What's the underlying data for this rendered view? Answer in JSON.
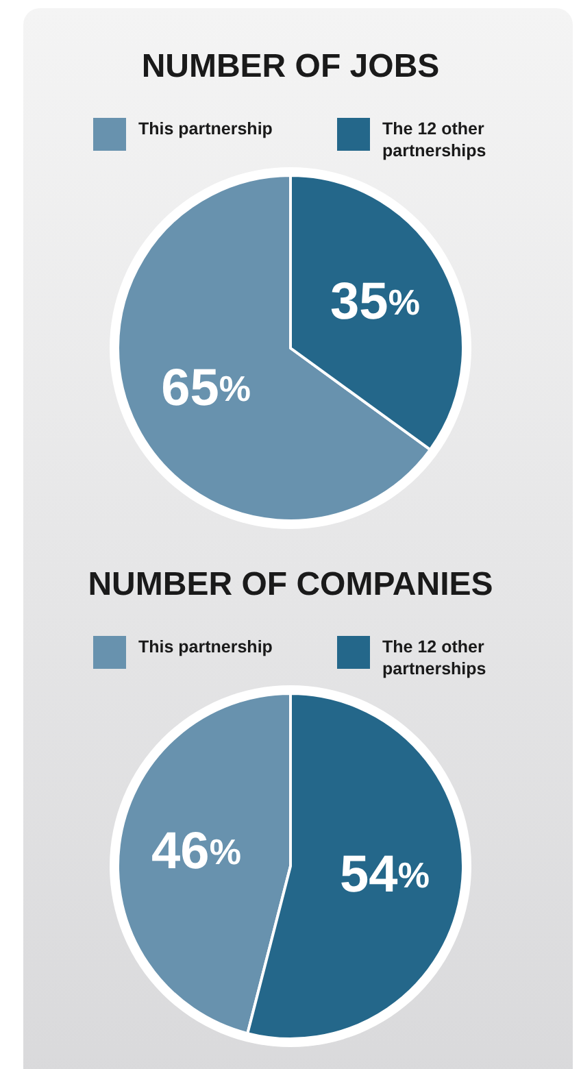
{
  "chart_data": [
    {
      "type": "pie",
      "title": "NUMBER OF JOBS",
      "categories": [
        "This partnership",
        "The 12 other partnerships"
      ],
      "values": [
        65,
        35
      ],
      "colors": [
        "#6892ae",
        "#24678a"
      ],
      "value_labels": [
        "65%",
        "35%"
      ],
      "legend": "top"
    },
    {
      "type": "pie",
      "title": "NUMBER OF COMPANIES",
      "categories": [
        "This partnership",
        "The 12 other partnerships"
      ],
      "values": [
        46,
        54
      ],
      "colors": [
        "#6892ae",
        "#24678a"
      ],
      "value_labels": [
        "46%",
        "54%"
      ],
      "legend": "top"
    }
  ]
}
